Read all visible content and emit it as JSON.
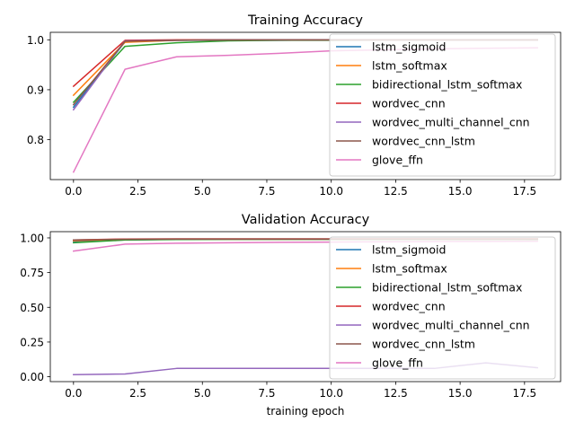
{
  "chart_data": [
    {
      "type": "line",
      "title": "Training Accuracy",
      "xlabel": "",
      "ylabel": "",
      "xlim": [
        -0.9,
        18.9
      ],
      "ylim": [
        0.72,
        1.015
      ],
      "xticks": [
        0.0,
        2.5,
        5.0,
        7.5,
        10.0,
        12.5,
        15.0,
        17.5
      ],
      "xtick_labels": [
        "0.0",
        "2.5",
        "5.0",
        "7.5",
        "10.0",
        "12.5",
        "15.0",
        "17.5"
      ],
      "yticks": [
        0.8,
        0.9,
        1.0
      ],
      "ytick_labels": [
        "0.8",
        "0.9",
        "1.0"
      ],
      "grid": false,
      "legend": "right",
      "series": [
        {
          "name": "lstm_sigmoid",
          "color": "#1f77b4",
          "x": [
            0,
            2,
            4,
            6,
            8,
            10,
            12,
            14,
            16,
            18
          ],
          "y": [
            0.865,
            0.996,
            0.999,
            0.999,
            0.999,
            1.0,
            1.0,
            1.0,
            1.0,
            1.0
          ]
        },
        {
          "name": "lstm_softmax",
          "color": "#ff7f0e",
          "x": [
            0,
            2,
            4,
            6,
            8,
            10,
            12,
            14,
            16,
            18
          ],
          "y": [
            0.889,
            0.995,
            0.999,
            1.0,
            1.0,
            1.0,
            1.0,
            1.0,
            1.0,
            1.0
          ]
        },
        {
          "name": "bidirectional_lstm_softmax",
          "color": "#2ca02c",
          "x": [
            0,
            2,
            4,
            6,
            8,
            10,
            12,
            14,
            16,
            18
          ],
          "y": [
            0.875,
            0.987,
            0.994,
            0.998,
            0.999,
            0.999,
            1.0,
            1.0,
            1.0,
            1.0
          ]
        },
        {
          "name": "wordvec_cnn",
          "color": "#d62728",
          "x": [
            0,
            2,
            4,
            6,
            8,
            10,
            12,
            14,
            16,
            18
          ],
          "y": [
            0.907,
            0.999,
            1.0,
            1.0,
            1.0,
            1.0,
            1.0,
            1.0,
            1.0,
            1.0
          ]
        },
        {
          "name": "wordvec_multi_channel_cnn",
          "color": "#9467bd",
          "x": [
            0,
            2,
            4,
            6,
            8,
            10,
            12,
            14,
            16,
            18
          ],
          "y": [
            0.86,
            0.998,
            0.999,
            1.0,
            1.0,
            1.0,
            1.0,
            1.0,
            1.0,
            1.0
          ]
        },
        {
          "name": "wordvec_cnn_lstm",
          "color": "#8c564b",
          "x": [
            0,
            2,
            4,
            6,
            8,
            10,
            12,
            14,
            16,
            18
          ],
          "y": [
            0.87,
            0.997,
            0.999,
            1.0,
            1.0,
            1.0,
            1.0,
            1.0,
            1.0,
            1.0
          ]
        },
        {
          "name": "glove_ffn",
          "color": "#e377c2",
          "x": [
            0,
            2,
            4,
            6,
            8,
            10,
            12,
            14,
            16,
            18
          ],
          "y": [
            0.735,
            0.941,
            0.966,
            0.969,
            0.973,
            0.978,
            0.98,
            0.982,
            0.983,
            0.984
          ]
        }
      ]
    },
    {
      "type": "line",
      "title": "Validation Accuracy",
      "xlabel": "training epoch",
      "ylabel": "",
      "xlim": [
        -0.9,
        18.9
      ],
      "ylim": [
        -0.035,
        1.045
      ],
      "xticks": [
        0.0,
        2.5,
        5.0,
        7.5,
        10.0,
        12.5,
        15.0,
        17.5
      ],
      "xtick_labels": [
        "0.0",
        "2.5",
        "5.0",
        "7.5",
        "10.0",
        "12.5",
        "15.0",
        "17.5"
      ],
      "yticks": [
        0.0,
        0.25,
        0.5,
        0.75,
        1.0
      ],
      "ytick_labels": [
        "0.00",
        "0.25",
        "0.50",
        "0.75",
        "1.00"
      ],
      "grid": false,
      "legend": "right",
      "series": [
        {
          "name": "lstm_sigmoid",
          "color": "#1f77b4",
          "x": [
            0,
            2,
            4,
            6,
            8,
            10,
            12,
            14,
            16,
            18
          ],
          "y": [
            0.975,
            0.985,
            0.99,
            0.99,
            0.99,
            0.99,
            0.99,
            0.99,
            0.99,
            0.99
          ]
        },
        {
          "name": "lstm_softmax",
          "color": "#ff7f0e",
          "x": [
            0,
            2,
            4,
            6,
            8,
            10,
            12,
            14,
            16,
            18
          ],
          "y": [
            0.98,
            0.99,
            0.99,
            0.99,
            0.99,
            0.99,
            0.99,
            0.99,
            0.99,
            0.99
          ]
        },
        {
          "name": "bidirectional_lstm_softmax",
          "color": "#2ca02c",
          "x": [
            0,
            2,
            4,
            6,
            8,
            10,
            12,
            14,
            16,
            18
          ],
          "y": [
            0.965,
            0.985,
            0.988,
            0.99,
            0.99,
            0.99,
            0.99,
            0.99,
            0.99,
            0.99
          ]
        },
        {
          "name": "wordvec_cnn",
          "color": "#d62728",
          "x": [
            0,
            2,
            4,
            6,
            8,
            10,
            12,
            14,
            16,
            18
          ],
          "y": [
            0.985,
            0.992,
            0.993,
            0.993,
            0.993,
            0.993,
            0.993,
            0.993,
            0.993,
            0.993
          ]
        },
        {
          "name": "wordvec_multi_channel_cnn",
          "color": "#9467bd",
          "x": [
            0,
            2,
            4,
            6,
            8,
            10,
            12,
            14,
            16,
            18
          ],
          "y": [
            0.015,
            0.02,
            0.06,
            0.06,
            0.06,
            0.06,
            0.06,
            0.06,
            0.1,
            0.065
          ]
        },
        {
          "name": "wordvec_cnn_lstm",
          "color": "#8c564b",
          "x": [
            0,
            2,
            4,
            6,
            8,
            10,
            12,
            14,
            16,
            18
          ],
          "y": [
            0.985,
            0.99,
            0.992,
            0.992,
            0.992,
            0.992,
            0.992,
            0.992,
            0.992,
            0.992
          ]
        },
        {
          "name": "glove_ffn",
          "color": "#e377c2",
          "x": [
            0,
            2,
            4,
            6,
            8,
            10,
            12,
            14,
            16,
            18
          ],
          "y": [
            0.905,
            0.955,
            0.962,
            0.965,
            0.968,
            0.97,
            0.972,
            0.974,
            0.975,
            0.976
          ]
        }
      ]
    }
  ]
}
